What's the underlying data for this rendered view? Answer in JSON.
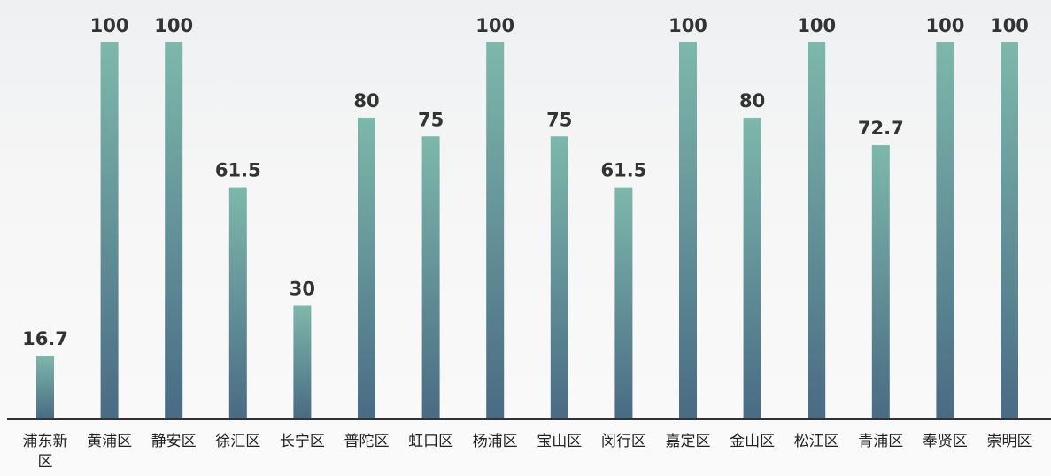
{
  "chart_data": {
    "type": "bar",
    "categories": [
      "浦东新区",
      "黄浦区",
      "静安区",
      "徐汇区",
      "长宁区",
      "普陀区",
      "虹口区",
      "杨浦区",
      "宝山区",
      "闵行区",
      "嘉定区",
      "金山区",
      "松江区",
      "青浦区",
      "奉贤区",
      "崇明区"
    ],
    "values": [
      16.7,
      100,
      100,
      61.5,
      30,
      80,
      75,
      100,
      75,
      61.5,
      100,
      80,
      100,
      72.7,
      100,
      100
    ],
    "gradient": [
      "#7db8ab",
      "#496b84"
    ]
  }
}
